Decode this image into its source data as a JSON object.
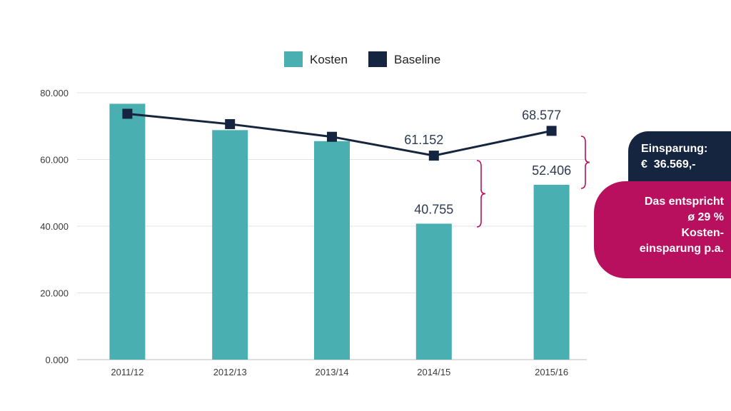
{
  "chart_data": {
    "type": "bar",
    "categories": [
      "2011/12",
      "2012/13",
      "2013/14",
      "2014/15",
      "2015/16"
    ],
    "series": [
      {
        "name": "Kosten",
        "type": "bar",
        "color": "#4aafb1",
        "values": [
          76700,
          68800,
          65500,
          40755,
          52406
        ]
      },
      {
        "name": "Baseline",
        "type": "line",
        "color": "#16253f",
        "values": [
          73700,
          70600,
          66800,
          61152,
          68577
        ]
      }
    ],
    "data_labels": {
      "Kosten": [
        "",
        "",
        "",
        "40.755",
        "52.406"
      ],
      "Baseline": [
        "",
        "",
        "",
        "61.152",
        "68.577"
      ]
    },
    "yticks": [
      "0.000",
      "20.000",
      "40.000",
      "60.000",
      "80.000"
    ],
    "ylim": [
      0,
      80000
    ],
    "grid": true,
    "legend_position": "top",
    "title": "",
    "xlabel": "",
    "ylabel": ""
  },
  "callouts": {
    "savings_line1": "Einsparung:",
    "savings_line2": "€  36.569,-",
    "note_lines": [
      "Das entspricht",
      "ø 29 %",
      "Kosten-",
      "einsparung p.a."
    ]
  },
  "colors": {
    "kosten": "#4aafb1",
    "baseline": "#16253f",
    "accent": "#b80f5e",
    "grid": "#e3e3e3"
  }
}
